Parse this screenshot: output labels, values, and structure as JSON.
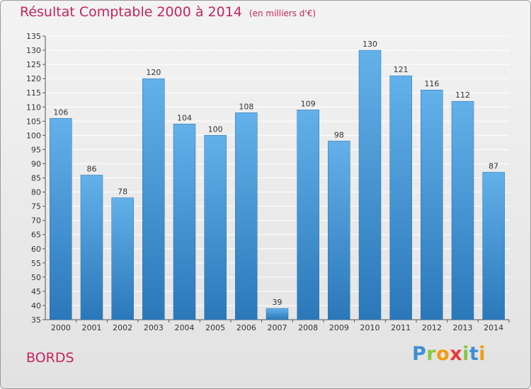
{
  "title": "Résultat Comptable 2000 à 2014",
  "subtitle": "(en milliers d'€)",
  "commune": "BORDS",
  "logo": {
    "letters": [
      "P",
      "r",
      "o",
      "x",
      "i",
      "t",
      "i"
    ],
    "colors": [
      "#3e8fd4",
      "#8cc63f",
      "#f39c12",
      "#e8383d",
      "#8cc63f",
      "#3e8fd4",
      "#f39c12"
    ]
  },
  "colors": {
    "bar_top": "#62b1ea",
    "bar_bottom": "#2a78b9",
    "title": "#c4245c",
    "grid": "#ffffff"
  },
  "chart_data": {
    "type": "bar",
    "title": "Résultat Comptable 2000 à 2014",
    "subtitle": "(en milliers d'€)",
    "categories": [
      "2000",
      "2001",
      "2002",
      "2003",
      "2004",
      "2005",
      "2006",
      "2007",
      "2008",
      "2009",
      "2010",
      "2011",
      "2012",
      "2013",
      "2014"
    ],
    "values": [
      106,
      86,
      78,
      120,
      104,
      100,
      108,
      39,
      109,
      98,
      130,
      121,
      116,
      112,
      87
    ],
    "ylim": [
      35,
      135
    ],
    "ytick_step": 5,
    "grid": true,
    "legend": "none"
  }
}
